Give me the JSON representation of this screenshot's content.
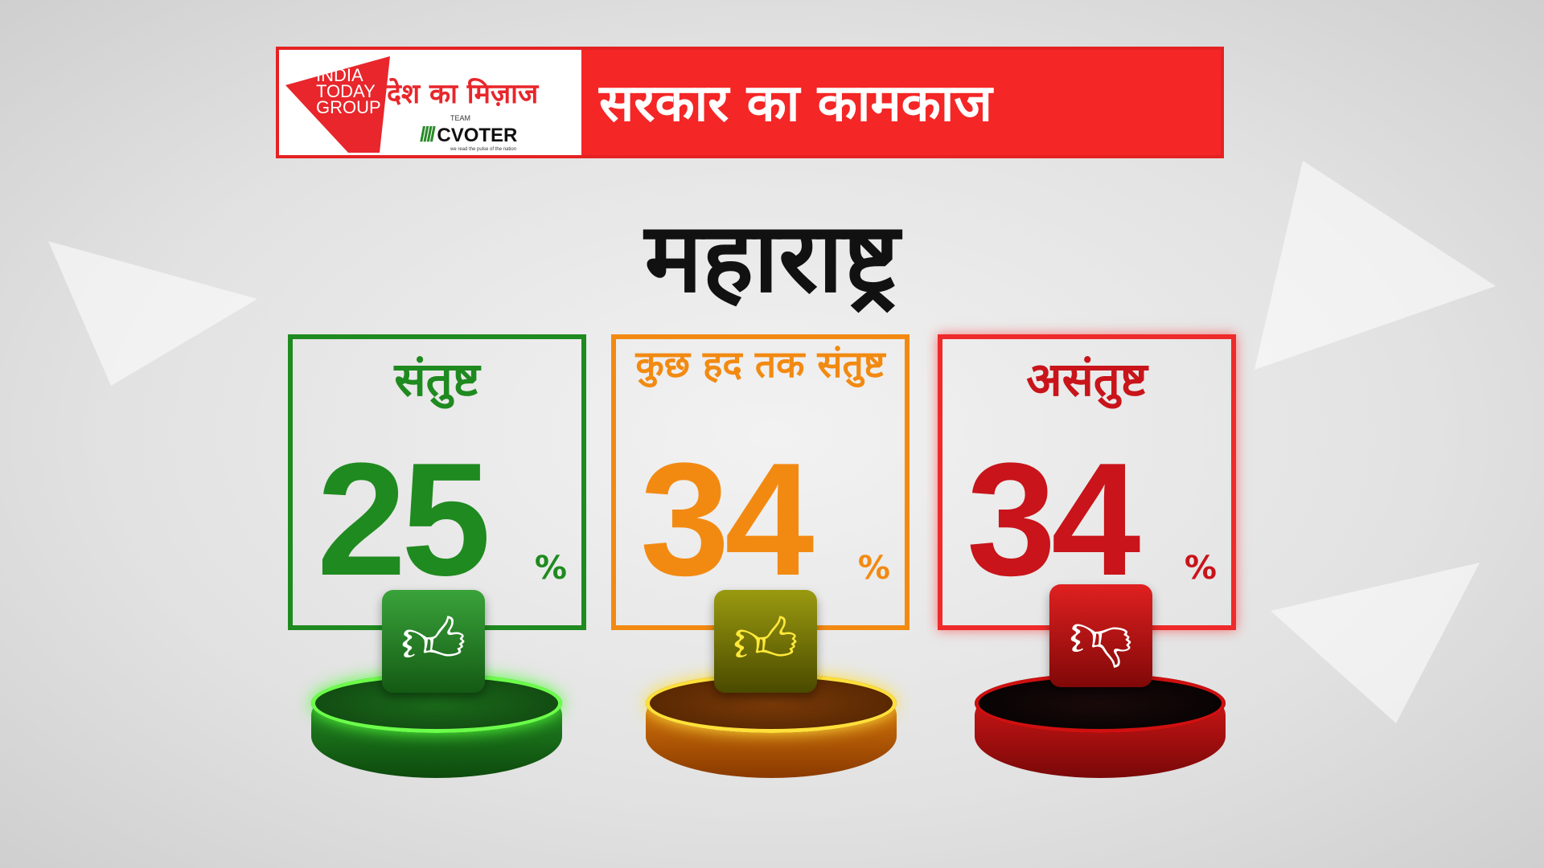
{
  "header": {
    "logo_text": "INDIA TODAY GROUP",
    "program": "देश का मिज़ाज",
    "partner_logo": {
      "team": "TEAM",
      "name": "CVOTER",
      "tagline": "we read the pulse of the nation"
    },
    "title": "सरकार का कामकाज"
  },
  "state": "महाराष्ट्र",
  "results": [
    {
      "label": "संतुष्ट",
      "value": "25",
      "unit": "%",
      "icon": "thumbs-up-icon",
      "color": "#1f8a1f"
    },
    {
      "label": "कुछ हद तक संतुष्ट",
      "value": "34",
      "unit": "%",
      "icon": "thumbs-up-icon",
      "color": "#f28a12"
    },
    {
      "label": "असंतुष्ट",
      "value": "34",
      "unit": "%",
      "icon": "thumbs-down-icon",
      "color": "#d0161a"
    }
  ]
}
